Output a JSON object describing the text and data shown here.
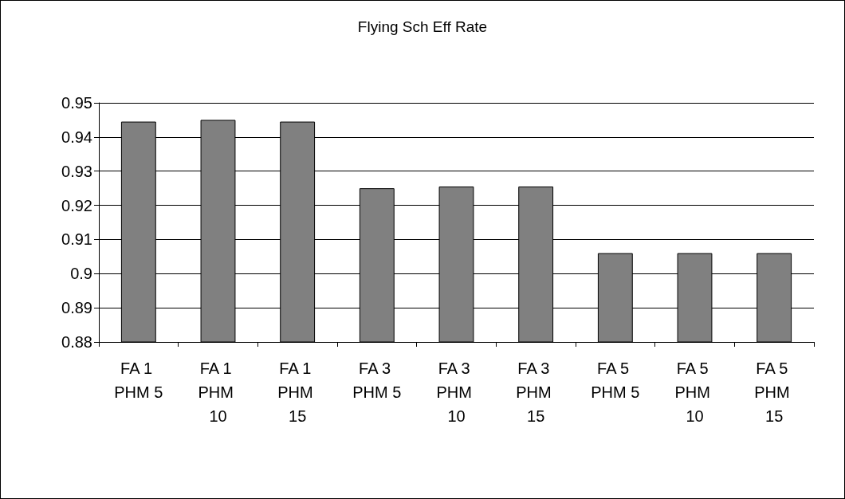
{
  "chart_data": {
    "type": "bar",
    "title": "Flying Sch Eff Rate",
    "categories": [
      "FA 1 PHM 5",
      "FA 1 PHM 10",
      "FA 1 PHM 15",
      "FA 3 PHM 5",
      "FA 3 PHM 10",
      "FA 3 PHM 15",
      "FA 5 PHM 5",
      "FA 5 PHM 10",
      "FA 5 PHM 15"
    ],
    "values": [
      0.9445,
      0.945,
      0.9445,
      0.925,
      0.9255,
      0.9255,
      0.906,
      0.906,
      0.906
    ],
    "color": "#808080",
    "ylim": [
      0.88,
      0.95
    ],
    "yticks": [
      0.88,
      0.89,
      0.9,
      0.91,
      0.92,
      0.93,
      0.94,
      0.95
    ],
    "grid": "y"
  }
}
